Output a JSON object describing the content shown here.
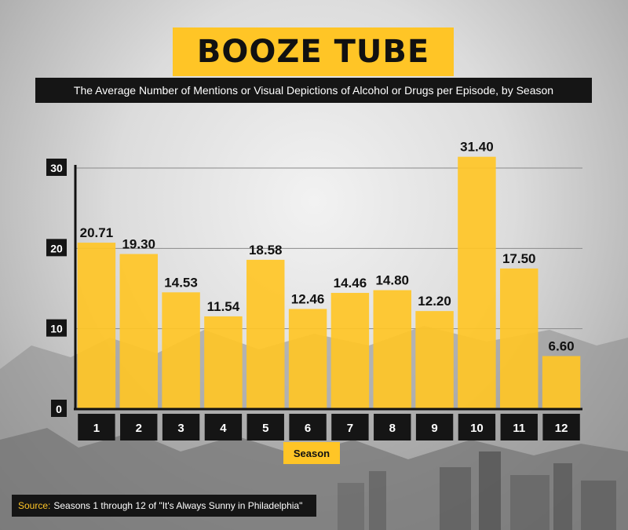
{
  "header": {
    "title": "BOOZE TUBE",
    "subtitle": "The Average Number of Mentions or Visual Depictions of Alcohol or Drugs per Episode, by Season"
  },
  "footer": {
    "source_label": "Source:",
    "source_text": "Seasons 1 through 12 of \"It's Always Sunny in Philadelphia\""
  },
  "colors": {
    "bar": "#ffc526",
    "label_box": "#151515",
    "accent": "#ffc526"
  },
  "chart_data": {
    "type": "bar",
    "title": "BOOZE TUBE",
    "subtitle": "The Average Number of Mentions or Visual Depictions of Alcohol or Drugs per Episode, by Season",
    "xlabel": "Season",
    "ylabel": "",
    "categories": [
      "1",
      "2",
      "3",
      "4",
      "5",
      "6",
      "7",
      "8",
      "9",
      "10",
      "11",
      "12"
    ],
    "values": [
      20.71,
      19.3,
      14.53,
      11.54,
      18.58,
      12.46,
      14.46,
      14.8,
      12.2,
      31.4,
      17.5,
      6.6
    ],
    "value_labels": [
      "20.71",
      "19.30",
      "14.53",
      "11.54",
      "18.58",
      "12.46",
      "14.46",
      "14.80",
      "12.20",
      "31.40",
      "17.50",
      "6.60"
    ],
    "yticks": [
      "0",
      "10",
      "20",
      "30"
    ],
    "ylim": [
      0,
      30
    ],
    "grid": true,
    "legend": "none"
  }
}
